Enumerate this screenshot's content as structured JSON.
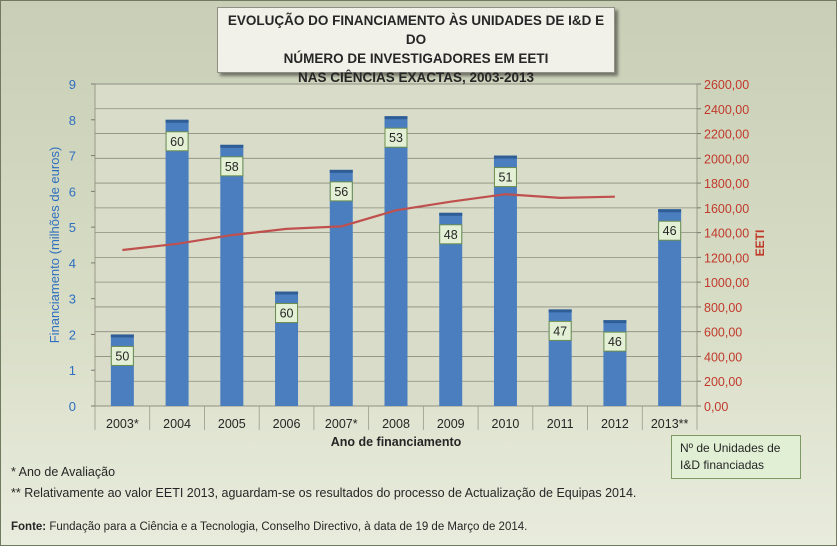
{
  "chart_data": {
    "type": "bar",
    "title_lines": [
      "EVOLUÇÃO DO FINANCIAMENTO ÀS UNIDADES DE I&D E DO",
      "NÚMERO DE INVESTIGADORES EM EETI",
      "NAS CIÊNCIAS EXACTAS, 2003-2013"
    ],
    "categories": [
      "2003*",
      "2004",
      "2005",
      "2006",
      "2007*",
      "2008",
      "2009",
      "2010",
      "2011",
      "2012",
      "2013**"
    ],
    "series": [
      {
        "type": "bar",
        "axis": "left",
        "values": [
          2.0,
          8.0,
          7.3,
          3.2,
          6.6,
          8.1,
          5.4,
          7.0,
          2.7,
          2.4,
          5.5
        ],
        "data_labels": [
          "50",
          "60",
          "58",
          "60",
          "56",
          "53",
          "48",
          "51",
          "47",
          "46",
          "46"
        ],
        "color": "#4a7ebf"
      },
      {
        "type": "line",
        "axis": "right",
        "values": [
          1260,
          1310,
          1380,
          1430,
          1450,
          1580,
          1650,
          1710,
          1680,
          1690,
          null
        ],
        "color": "#c0504d"
      }
    ],
    "xlabel": "Ano de financiamento",
    "ylabel": "Financiamento (milhões de euros)",
    "y2label": "EETI",
    "ylim": [
      0,
      9
    ],
    "y_ticks": [
      "0",
      "1",
      "2",
      "3",
      "4",
      "5",
      "6",
      "7",
      "8",
      "9"
    ],
    "y2lim": [
      0,
      2600
    ],
    "y2_ticks": [
      "0,00",
      "200,00",
      "400,00",
      "600,00",
      "800,00",
      "1000,00",
      "1200,00",
      "1400,00",
      "1600,00",
      "1800,00",
      "2000,00",
      "2200,00",
      "2400,00",
      "2600,00"
    ],
    "grid": true,
    "legend": "bottom-right"
  },
  "legend_box": {
    "line1": "Nº de Unidades de",
    "line2": "I&D  financiadas"
  },
  "notes": {
    "note1": "* Ano de Avaliação",
    "note2": "** Relativamente ao valor EETI 2013, aguardam-se os resultados do processo de Actualização de Equipas 2014."
  },
  "source": {
    "label": "Fonte:",
    "text": " Fundação para a Ciência e a Tecnologia, Conselho Directivo, à data de 19 de Março de 2014."
  },
  "colors": {
    "bar": "#4a7ebf",
    "bar_top": "#2f5e96",
    "line": "#c0504d",
    "label_box": "#e3f0d6",
    "label_border": "#6e8f4f",
    "axis_left": "#2e6fbf",
    "axis_right": "#c0392b"
  }
}
